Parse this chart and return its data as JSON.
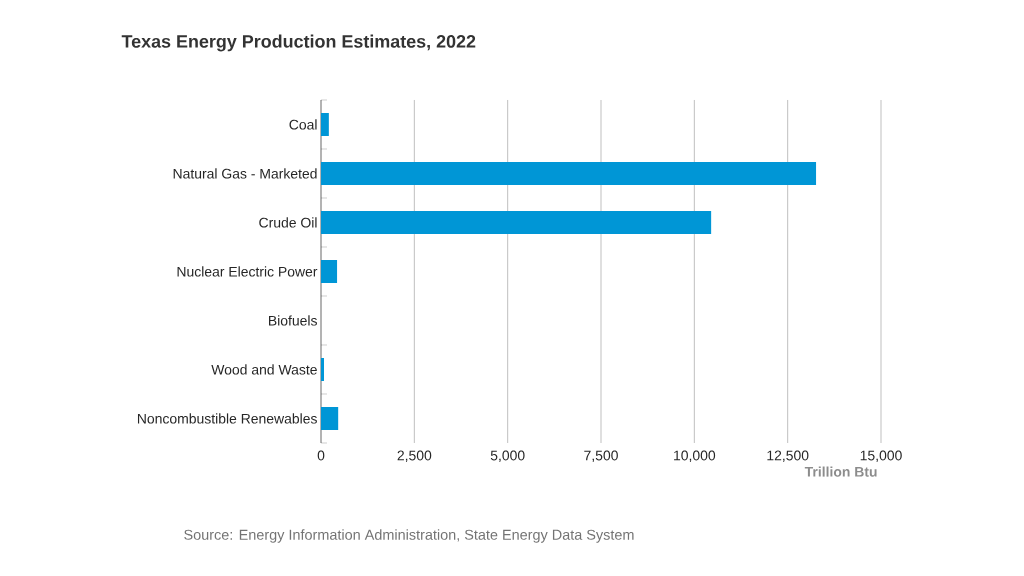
{
  "chart_data": {
    "type": "bar",
    "orientation": "horizontal",
    "title": "Texas Energy Production Estimates, 2022",
    "categories": [
      "Coal",
      "Natural Gas - Marketed",
      "Crude Oil",
      "Nuclear Electric Power",
      "Biofuels",
      "Wood and Waste",
      "Noncombustible Renewables"
    ],
    "values": [
      210,
      13260,
      10450,
      430,
      0,
      80,
      460
    ],
    "color": "#0096d6",
    "xlim": [
      0,
      15000
    ],
    "xticks": [
      0,
      {
        "value": 2500,
        "label": "2,500"
      },
      {
        "value": 5000,
        "label": "5,000"
      },
      {
        "value": 7500,
        "label": "7,500"
      },
      {
        "value": 10000,
        "label": "10,000"
      },
      {
        "value": 12500,
        "label": "12,500"
      },
      {
        "value": 15000,
        "label": "15,000"
      }
    ],
    "xlabel": "Trillion Btu",
    "grid": "x",
    "annotations": [
      "Source: Energy Information Administration, State Energy Data System"
    ]
  }
}
